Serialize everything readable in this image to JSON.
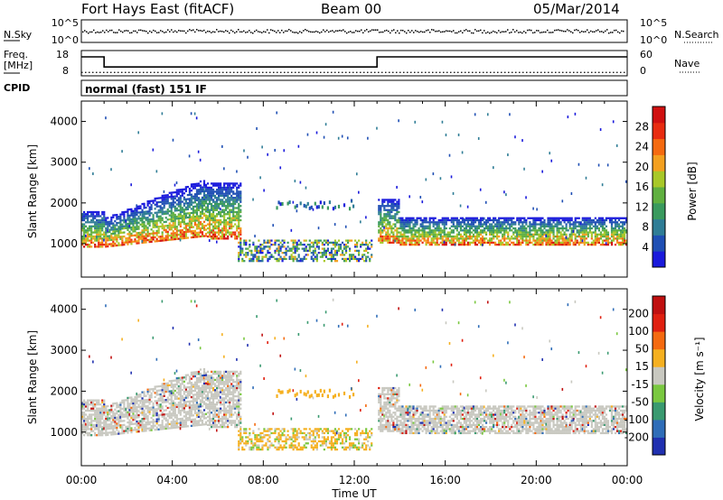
{
  "header": {
    "station": "Fort Hays East (fitACF)",
    "beam": "Beam 00",
    "date": "05/Mar/2014"
  },
  "control_panels": {
    "nsky_label": "N.Sky",
    "nsky_ticks": [
      "10^5",
      "10^0"
    ],
    "nsearch_label": "N.Search",
    "nsearch_ticks": [
      "10^5",
      "10^0"
    ],
    "freq_label": "Freq.",
    "freq_unit": "[MHz]",
    "freq_ticks": [
      "18",
      "8"
    ],
    "nave_label": "Nave",
    "nave_ticks": [
      "60",
      "0"
    ],
    "cpid_label": "CPID",
    "cpid_text": "normal (fast) 151 IF",
    "freq_steps": [
      {
        "from": 0,
        "to": 1.0,
        "mhz": 15.5
      },
      {
        "from": 1.0,
        "to": 13.0,
        "mhz": 11.5
      },
      {
        "from": 13.0,
        "to": 24,
        "mhz": 15.5
      }
    ],
    "nave_level": 8
  },
  "chart_data": [
    {
      "type": "heatmap",
      "name": "power",
      "ylabel": "Slant Range [km]",
      "xlabel": "Time UT",
      "x_range_hours": [
        0,
        24
      ],
      "ylim_km": [
        180,
        4500
      ],
      "y_ticks": [
        "1000",
        "2000",
        "3000",
        "4000"
      ],
      "x_ticks": [
        "00:00",
        "04:00",
        "08:00",
        "12:00",
        "16:00",
        "20:00",
        "00:00"
      ],
      "colorbar_label": "Power [dB]",
      "colorbar_ticks": [
        "28",
        "24",
        "20",
        "16",
        "12",
        "8",
        "4"
      ],
      "colorbar_range": [
        0,
        30
      ],
      "colors": [
        "#1a1adc",
        "#1f4fb4",
        "#2f7d96",
        "#3a9a5e",
        "#60b040",
        "#a8c828",
        "#f3a020",
        "#f56a10",
        "#e82c10",
        "#d01010"
      ]
    },
    {
      "type": "heatmap",
      "name": "velocity",
      "ylabel": "Slant Range [km]",
      "xlabel": "Time UT",
      "x_range_hours": [
        0,
        24
      ],
      "ylim_km": [
        180,
        4500
      ],
      "y_ticks": [
        "1000",
        "2000",
        "3000",
        "4000"
      ],
      "x_ticks": [
        "00:00",
        "04:00",
        "08:00",
        "12:00",
        "16:00",
        "20:00",
        "00:00"
      ],
      "colorbar_label": "Velocity [m s⁻¹]",
      "colorbar_ticks": [
        "200",
        "100",
        "50",
        "15",
        "-15",
        "-50",
        "-100",
        "-200"
      ],
      "colors": [
        "#2030b0",
        "#2f6db8",
        "#3a9a70",
        "#7ac840",
        "#c8c8c0",
        "#f5b020",
        "#f56a10",
        "#e02010",
        "#c01010"
      ]
    }
  ]
}
